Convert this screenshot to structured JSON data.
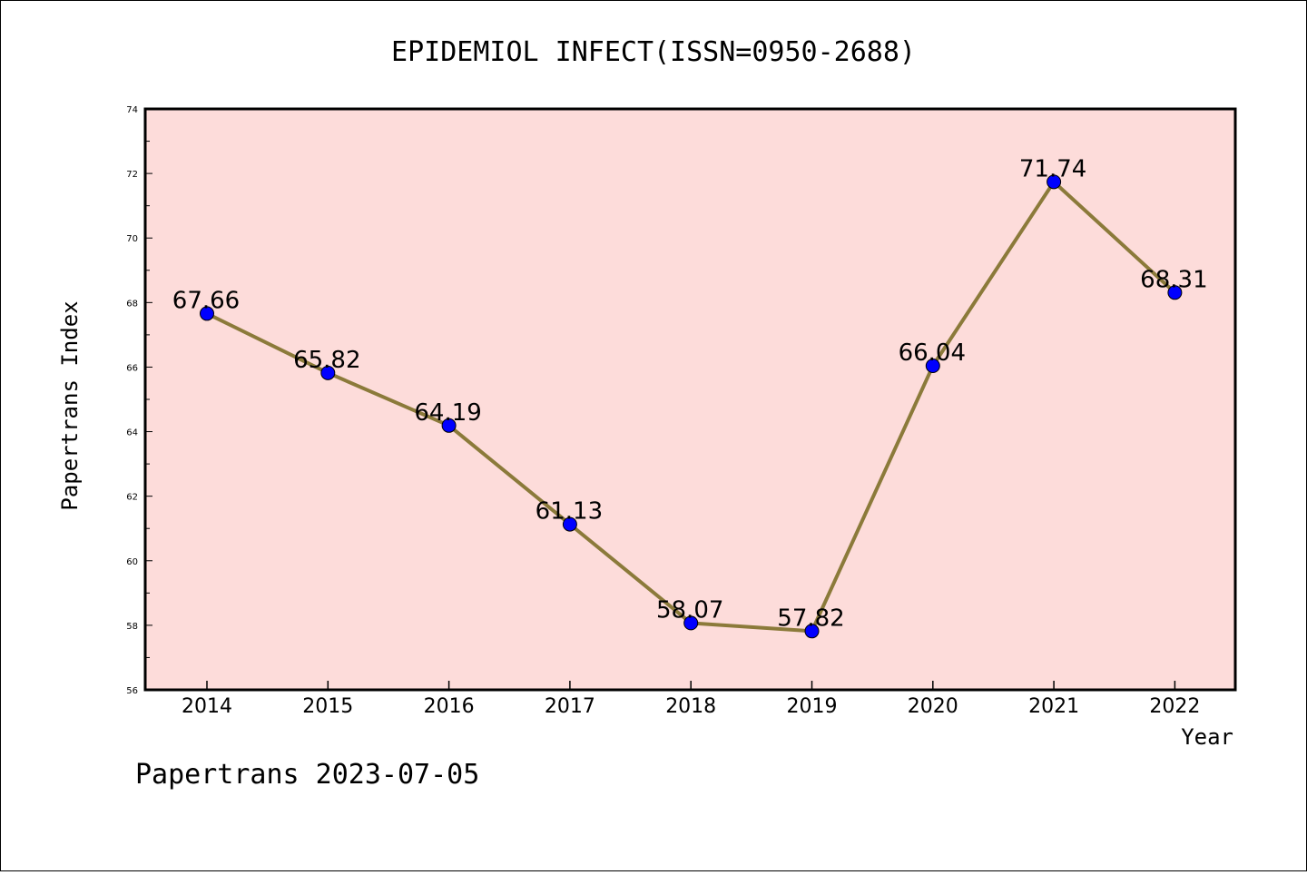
{
  "chart_data": {
    "type": "line",
    "title": "EPIDEMIOL INFECT(ISSN=0950-2688)",
    "xlabel": "Year",
    "ylabel": "Papertrans Index",
    "categories": [
      "2014",
      "2015",
      "2016",
      "2017",
      "2018",
      "2019",
      "2020",
      "2021",
      "2022"
    ],
    "values": [
      67.66,
      65.82,
      64.19,
      61.13,
      58.07,
      57.82,
      66.04,
      71.74,
      68.31
    ],
    "data_labels": [
      "67.66",
      "65.82",
      "64.19",
      "61.13",
      "58.07",
      "57.82",
      "66.04",
      "71.74",
      "68.31"
    ],
    "ylim": [
      56,
      74
    ],
    "yticks": [
      56,
      58,
      60,
      62,
      64,
      66,
      68,
      70,
      72,
      74
    ],
    "grid": false,
    "legend": "none",
    "colors": {
      "plot_background": "#fddcda",
      "line": "#8b7a3a",
      "marker": "#0000ff"
    },
    "footer": "Papertrans 2023-07-05"
  }
}
